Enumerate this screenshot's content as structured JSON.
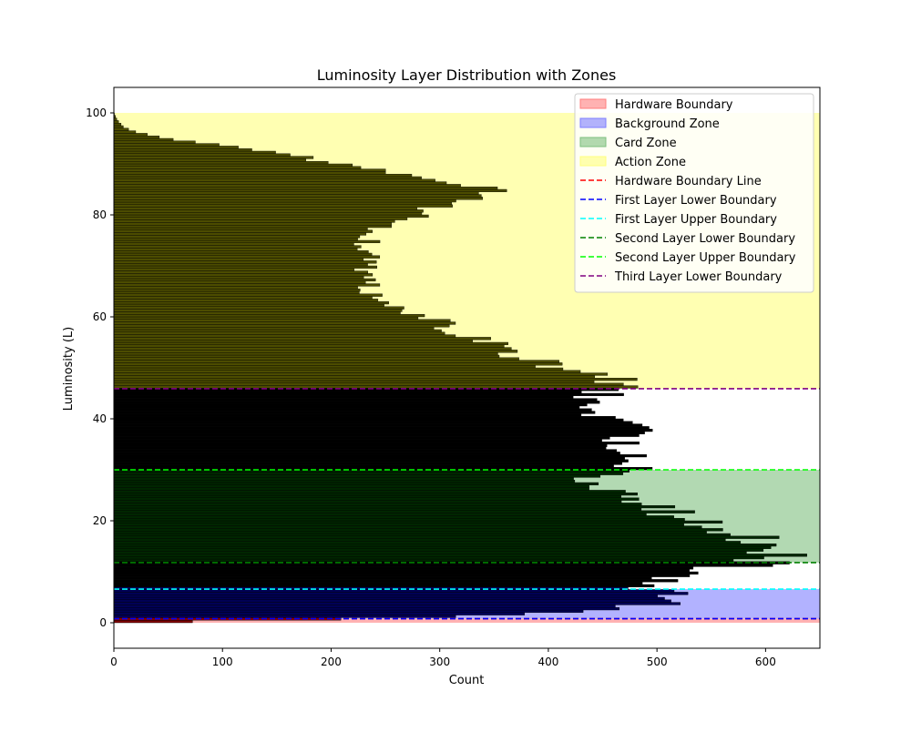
{
  "chart_data": {
    "type": "bar",
    "orientation": "horizontal",
    "title": "Luminosity Layer Distribution with Zones",
    "xlabel": "Count",
    "ylabel": "Luminosity (L)",
    "xlim": [
      0,
      650
    ],
    "ylim": [
      -5,
      105
    ],
    "xticks": [
      0,
      100,
      200,
      300,
      400,
      500,
      600
    ],
    "yticks": [
      0,
      20,
      40,
      60,
      80,
      100
    ],
    "grid": false,
    "legend_position": "top-right",
    "bin_width": 0.5,
    "zones": [
      {
        "name": "Hardware Boundary",
        "y0": 0,
        "y1": 0.8,
        "color": "#ff7f7f"
      },
      {
        "name": "Background Zone",
        "y0": 0.8,
        "y1": 6.6,
        "color": "#7f7fff"
      },
      {
        "name": "Card Zone",
        "y0": 11.8,
        "y1": 30,
        "color": "#7fbf7f"
      },
      {
        "name": "Action Zone",
        "y0": 45.9,
        "y1": 100,
        "color": "#ffff7f"
      }
    ],
    "boundary_lines": [
      {
        "name": "Hardware Boundary Line",
        "y": 0.8,
        "color": "#ff0000"
      },
      {
        "name": "First Layer Lower Boundary",
        "y": 0.8,
        "color": "#0000ff"
      },
      {
        "name": "First Layer Upper Boundary",
        "y": 6.6,
        "color": "#00ffff"
      },
      {
        "name": "Second Layer Lower Boundary",
        "y": 11.8,
        "color": "#008000"
      },
      {
        "name": "Second Layer Upper Boundary",
        "y": 30,
        "color": "#00ff00"
      },
      {
        "name": "Third Layer Lower Boundary",
        "y": 45.9,
        "color": "#800080"
      }
    ],
    "band_colors": [
      {
        "y0": 0,
        "y1": 0.8,
        "color": "#7f0000"
      },
      {
        "y0": 0.8,
        "y1": 6.6,
        "color": "#000055"
      },
      {
        "y0": 6.6,
        "y1": 11.8,
        "color": "#000000"
      },
      {
        "y0": 11.8,
        "y1": 30,
        "color": "#002600"
      },
      {
        "y0": 30,
        "y1": 45.9,
        "color": "#000000"
      },
      {
        "y0": 45.9,
        "y1": 100,
        "color": "#4c4c00"
      }
    ],
    "profile_points": [
      [
        0,
        30
      ],
      [
        0.5,
        115
      ],
      [
        1,
        300
      ],
      [
        2,
        420
      ],
      [
        3,
        480
      ],
      [
        4,
        505
      ],
      [
        5,
        515
      ],
      [
        6,
        510
      ],
      [
        7,
        495
      ],
      [
        8,
        505
      ],
      [
        9,
        520
      ],
      [
        10,
        545
      ],
      [
        11,
        570
      ],
      [
        12,
        595
      ],
      [
        13,
        605
      ],
      [
        14,
        605
      ],
      [
        15,
        600
      ],
      [
        16,
        590
      ],
      [
        17,
        575
      ],
      [
        18,
        560
      ],
      [
        19,
        550
      ],
      [
        20,
        540
      ],
      [
        21,
        520
      ],
      [
        22,
        505
      ],
      [
        23,
        490
      ],
      [
        24,
        480
      ],
      [
        25,
        470
      ],
      [
        26,
        460
      ],
      [
        27,
        450
      ],
      [
        28,
        445
      ],
      [
        29,
        455
      ],
      [
        30,
        470
      ],
      [
        31,
        470
      ],
      [
        32,
        475
      ],
      [
        33,
        470
      ],
      [
        34,
        465
      ],
      [
        35,
        470
      ],
      [
        36,
        470
      ],
      [
        37,
        468
      ],
      [
        38,
        470
      ],
      [
        39,
        465
      ],
      [
        40,
        460
      ],
      [
        41,
        455
      ],
      [
        42,
        445
      ],
      [
        43,
        440
      ],
      [
        44,
        430
      ],
      [
        45,
        450
      ],
      [
        46,
        480
      ],
      [
        47,
        470
      ],
      [
        48,
        450
      ],
      [
        49,
        430
      ],
      [
        50,
        410
      ],
      [
        51,
        395
      ],
      [
        52,
        380
      ],
      [
        53,
        365
      ],
      [
        54,
        355
      ],
      [
        55,
        345
      ],
      [
        56,
        330
      ],
      [
        57,
        320
      ],
      [
        58,
        310
      ],
      [
        59,
        300
      ],
      [
        60,
        290
      ],
      [
        61,
        275
      ],
      [
        62,
        265
      ],
      [
        63,
        255
      ],
      [
        64,
        240
      ],
      [
        65,
        235
      ],
      [
        66,
        240
      ],
      [
        67,
        245
      ],
      [
        68,
        240
      ],
      [
        69,
        235
      ],
      [
        70,
        235
      ],
      [
        71,
        235
      ],
      [
        72,
        232
      ],
      [
        73,
        230
      ],
      [
        74,
        232
      ],
      [
        75,
        235
      ],
      [
        76,
        240
      ],
      [
        77,
        245
      ],
      [
        78,
        255
      ],
      [
        79,
        265
      ],
      [
        80,
        280
      ],
      [
        81,
        290
      ],
      [
        82,
        300
      ],
      [
        83,
        320
      ],
      [
        84,
        335
      ],
      [
        85,
        345
      ],
      [
        86,
        315
      ],
      [
        87,
        280
      ],
      [
        88,
        255
      ],
      [
        89,
        230
      ],
      [
        90,
        205
      ],
      [
        91,
        180
      ],
      [
        92,
        155
      ],
      [
        93,
        120
      ],
      [
        94,
        85
      ],
      [
        95,
        45
      ],
      [
        96,
        25
      ],
      [
        97,
        10
      ],
      [
        98,
        5
      ],
      [
        99,
        2
      ],
      [
        100,
        0
      ]
    ]
  }
}
